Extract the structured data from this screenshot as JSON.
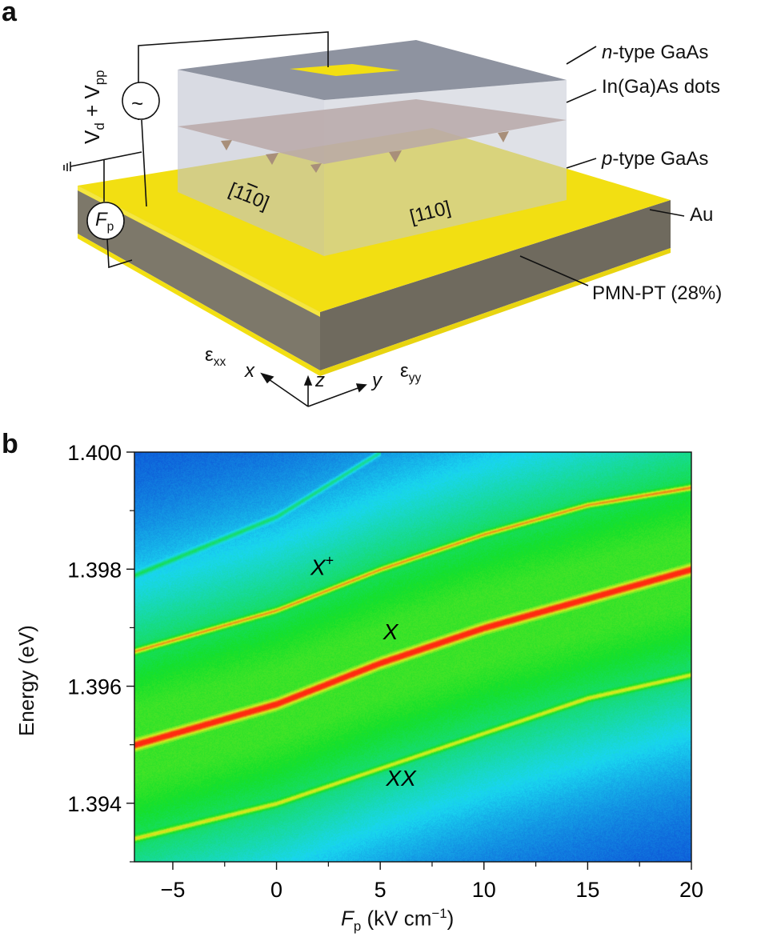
{
  "panel_a": {
    "label": "a",
    "layers": {
      "n_type": {
        "prefix": "n",
        "suffix": "-type GaAs"
      },
      "dots": "In(Ga)As dots",
      "p_type": {
        "prefix": "p",
        "suffix": "-type GaAs"
      },
      "au": "Au",
      "pmn": "PMN-PT (28%)"
    },
    "directions": {
      "d1": "[1",
      "d1bar": "1",
      "d1end": "0]",
      "d2": "[110]"
    },
    "source": {
      "symbol": "~",
      "v": "V",
      "d": "d",
      "plus": " + ",
      "pp": "pp"
    },
    "field": {
      "f": "F",
      "p": "p"
    },
    "strain": {
      "exx_e": "ε",
      "exx_s": "xx",
      "eyy_e": "ε",
      "eyy_s": "yy"
    },
    "axes": {
      "x": "x",
      "y": "y",
      "z": "z"
    },
    "colors": {
      "gold": "#f2df12",
      "pmn": "#7a7466",
      "box": "#c9ccd8",
      "dots": "#b9a8a8"
    }
  },
  "chart_data": {
    "panel_label": "b",
    "type": "heatmap",
    "title": "",
    "xlabel": {
      "main": "F",
      "sub": "p",
      "unit": " (kV cm",
      "exp": "−1",
      "close": ")"
    },
    "ylabel": "Energy (eV)",
    "xlim": [
      -6.85,
      20
    ],
    "ylim": [
      1.393,
      1.4
    ],
    "xticks": [
      -5,
      0,
      5,
      10,
      15,
      20
    ],
    "xtick_labels": [
      "−5",
      "0",
      "5",
      "10",
      "15",
      "20"
    ],
    "yticks": [
      1.394,
      1.396,
      1.398,
      1.4
    ],
    "ytick_labels": [
      "1.394",
      "1.396",
      "1.398",
      "1.400"
    ],
    "y_minor_ticks": [
      1.393,
      1.395,
      1.397,
      1.399
    ],
    "x_minor_ticks": [
      -2.5,
      2.5,
      7.5,
      12.5,
      17.5
    ],
    "grid": false,
    "colormap": [
      "#0a2fd0",
      "#19d6f0",
      "#14e02a",
      "#d4f020",
      "#ff2a10"
    ],
    "series": [
      {
        "name": "X+",
        "label": "X",
        "sup": "+",
        "x": [
          -6.85,
          0,
          5,
          10,
          15,
          20
        ],
        "y": [
          1.3966,
          1.3973,
          1.398,
          1.3986,
          1.3991,
          1.3994
        ],
        "intensity": 0.85
      },
      {
        "name": "X",
        "label": "X",
        "x": [
          -6.85,
          0,
          5,
          10,
          15,
          20
        ],
        "y": [
          1.395,
          1.3957,
          1.3964,
          1.397,
          1.3975,
          1.398
        ],
        "intensity": 1.0
      },
      {
        "name": "XX",
        "label": "XX",
        "x": [
          -6.85,
          0,
          5,
          10,
          15,
          20
        ],
        "y": [
          1.3934,
          1.394,
          1.3946,
          1.3952,
          1.3958,
          1.3962
        ],
        "intensity": 0.7
      },
      {
        "name": "faint",
        "x": [
          -6.85,
          0,
          5
        ],
        "y": [
          1.3979,
          1.3989,
          1.4
        ],
        "intensity": 0.2
      }
    ],
    "label_positions": [
      {
        "series": "X+",
        "x": 2.2,
        "y": 1.3979
      },
      {
        "series": "X",
        "x": 5.5,
        "y": 1.3968
      },
      {
        "series": "XX",
        "x": 6.0,
        "y": 1.3943
      }
    ]
  }
}
